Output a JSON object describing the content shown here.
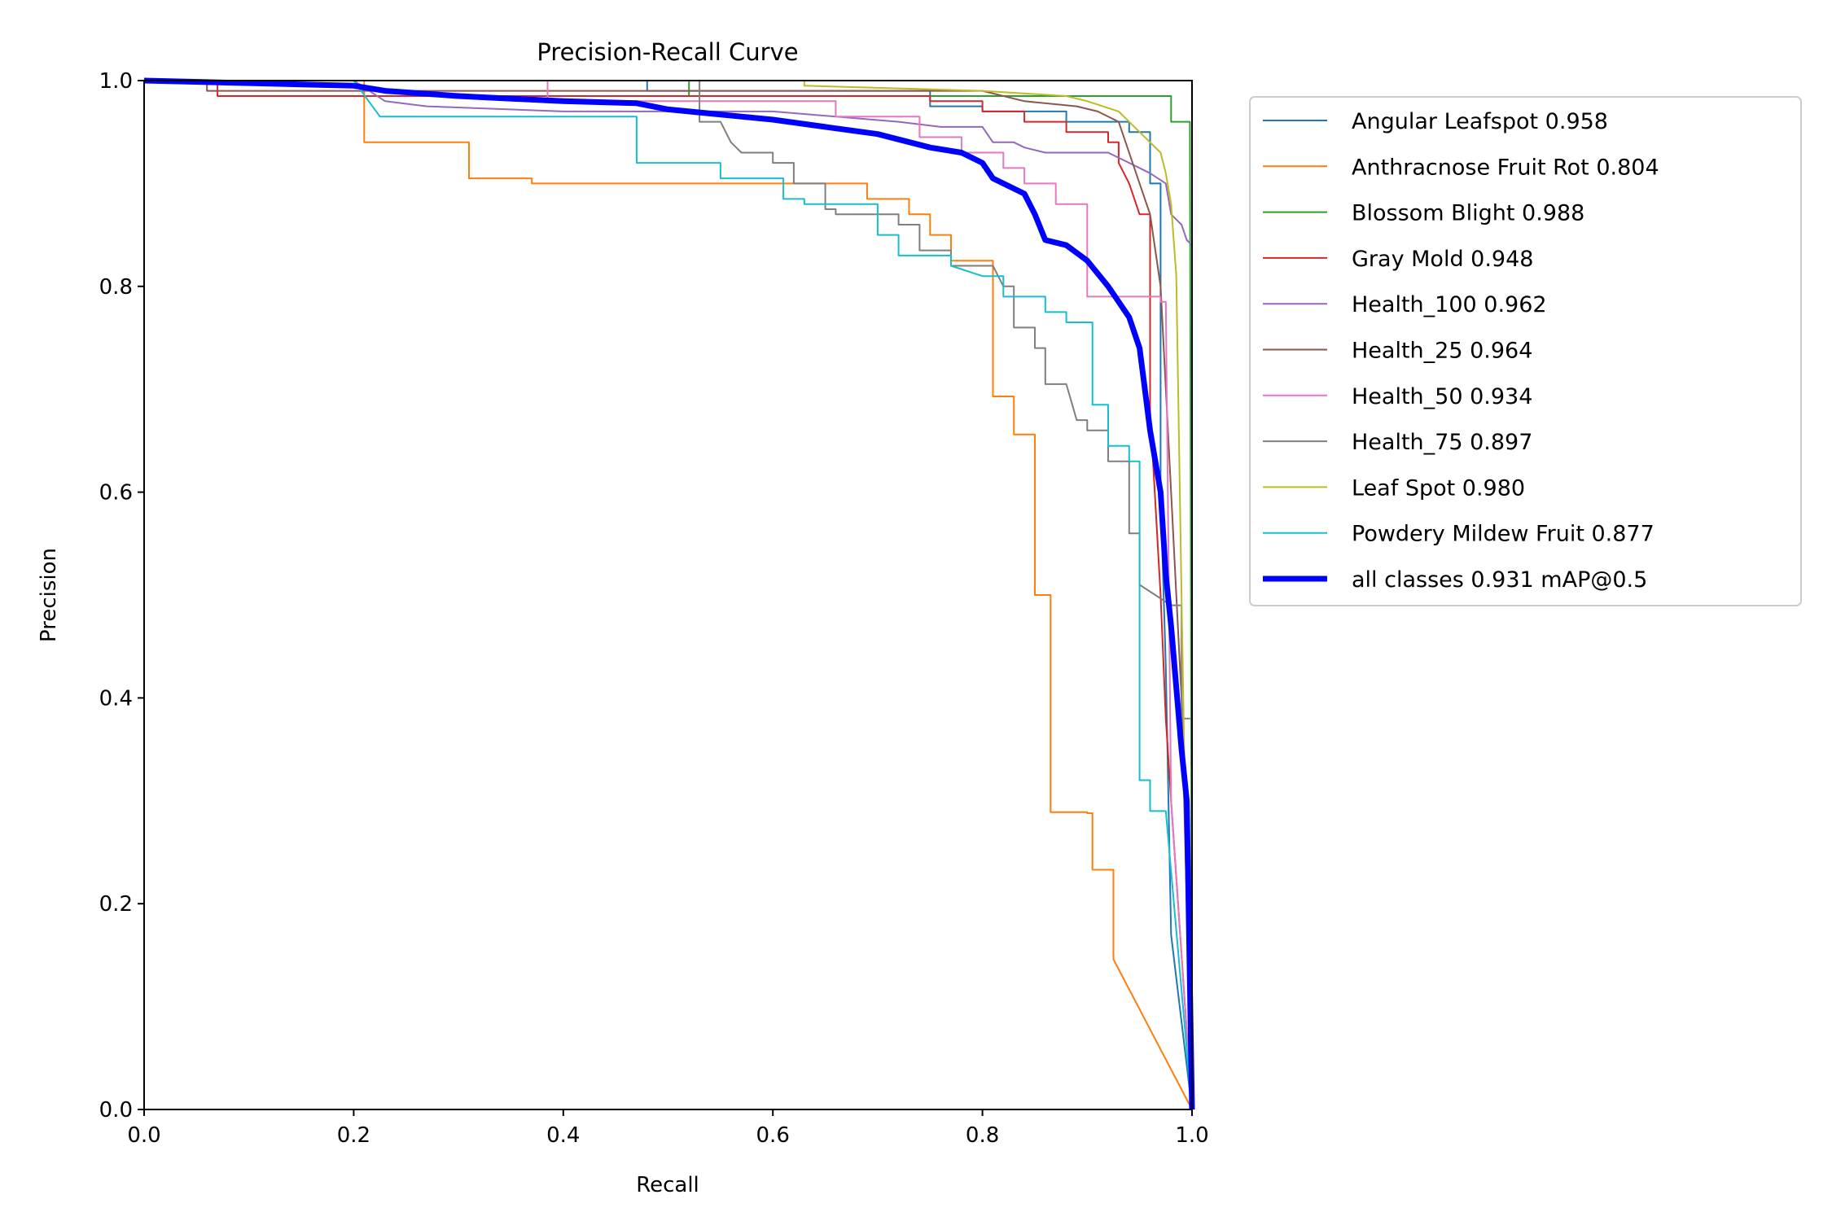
{
  "chart_data": {
    "type": "line",
    "title": "Precision-Recall Curve",
    "xlabel": "Recall",
    "ylabel": "Precision",
    "xlim": [
      0,
      1
    ],
    "ylim": [
      0,
      1
    ],
    "xticks": [
      "0.0",
      "0.2",
      "0.4",
      "0.6",
      "0.8",
      "1.0"
    ],
    "yticks": [
      "0.0",
      "0.2",
      "0.4",
      "0.6",
      "0.8",
      "1.0"
    ],
    "grid": false,
    "legend_position": "outside-top-right",
    "series": [
      {
        "name": "Angular Leafspot 0.958",
        "color": "#1f77b4",
        "points": [
          [
            0,
            1
          ],
          [
            0.48,
            1
          ],
          [
            0.48,
            0.99
          ],
          [
            0.75,
            0.99
          ],
          [
            0.75,
            0.975
          ],
          [
            0.8,
            0.975
          ],
          [
            0.8,
            0.97
          ],
          [
            0.88,
            0.97
          ],
          [
            0.88,
            0.96
          ],
          [
            0.94,
            0.96
          ],
          [
            0.94,
            0.95
          ],
          [
            0.96,
            0.95
          ],
          [
            0.96,
            0.9
          ],
          [
            0.97,
            0.9
          ],
          [
            0.97,
            0.6
          ],
          [
            0.975,
            0.43
          ],
          [
            0.98,
            0.17
          ],
          [
            1.0,
            0.0
          ]
        ]
      },
      {
        "name": "Anthracnose Fruit Rot 0.804",
        "color": "#ff7f0e",
        "points": [
          [
            0,
            1
          ],
          [
            0.21,
            1
          ],
          [
            0.21,
            0.94
          ],
          [
            0.31,
            0.94
          ],
          [
            0.31,
            0.905
          ],
          [
            0.37,
            0.905
          ],
          [
            0.37,
            0.9
          ],
          [
            0.69,
            0.9
          ],
          [
            0.69,
            0.885
          ],
          [
            0.73,
            0.885
          ],
          [
            0.73,
            0.87
          ],
          [
            0.75,
            0.87
          ],
          [
            0.75,
            0.85
          ],
          [
            0.77,
            0.85
          ],
          [
            0.77,
            0.825
          ],
          [
            0.81,
            0.825
          ],
          [
            0.81,
            0.693
          ],
          [
            0.83,
            0.693
          ],
          [
            0.83,
            0.656
          ],
          [
            0.85,
            0.656
          ],
          [
            0.85,
            0.5
          ],
          [
            0.865,
            0.5
          ],
          [
            0.865,
            0.289
          ],
          [
            0.9,
            0.289
          ],
          [
            0.9,
            0.288
          ],
          [
            0.905,
            0.288
          ],
          [
            0.905,
            0.233
          ],
          [
            0.925,
            0.233
          ],
          [
            0.925,
            0.146
          ],
          [
            1.0,
            0.0
          ]
        ]
      },
      {
        "name": "Blossom Blight 0.988",
        "color": "#2ca02c",
        "points": [
          [
            0,
            1
          ],
          [
            0.52,
            1
          ],
          [
            0.52,
            0.985
          ],
          [
            0.98,
            0.985
          ],
          [
            0.98,
            0.96
          ],
          [
            0.998,
            0.96
          ],
          [
            1.0,
            0.0
          ]
        ]
      },
      {
        "name": "Gray Mold 0.948",
        "color": "#d62728",
        "points": [
          [
            0,
            1
          ],
          [
            0.07,
            1
          ],
          [
            0.07,
            0.985
          ],
          [
            0.75,
            0.985
          ],
          [
            0.75,
            0.98
          ],
          [
            0.8,
            0.98
          ],
          [
            0.8,
            0.97
          ],
          [
            0.84,
            0.97
          ],
          [
            0.84,
            0.96
          ],
          [
            0.88,
            0.96
          ],
          [
            0.88,
            0.95
          ],
          [
            0.92,
            0.95
          ],
          [
            0.92,
            0.94
          ],
          [
            0.93,
            0.94
          ],
          [
            0.93,
            0.92
          ],
          [
            0.94,
            0.9
          ],
          [
            0.95,
            0.87
          ],
          [
            0.96,
            0.87
          ],
          [
            0.96,
            0.68
          ],
          [
            0.97,
            0.5
          ],
          [
            0.975,
            0.38
          ],
          [
            0.98,
            0.3
          ],
          [
            1.0,
            0.0
          ]
        ]
      },
      {
        "name": "Health_100 0.962",
        "color": "#9467bd",
        "points": [
          [
            0,
            1
          ],
          [
            0.2,
            1
          ],
          [
            0.23,
            0.98
          ],
          [
            0.27,
            0.975
          ],
          [
            0.4,
            0.97
          ],
          [
            0.6,
            0.97
          ],
          [
            0.72,
            0.96
          ],
          [
            0.76,
            0.955
          ],
          [
            0.8,
            0.955
          ],
          [
            0.81,
            0.94
          ],
          [
            0.83,
            0.94
          ],
          [
            0.84,
            0.935
          ],
          [
            0.86,
            0.93
          ],
          [
            0.92,
            0.93
          ],
          [
            0.94,
            0.92
          ],
          [
            0.96,
            0.91
          ],
          [
            0.975,
            0.9
          ],
          [
            0.98,
            0.87
          ],
          [
            0.99,
            0.86
          ],
          [
            0.995,
            0.845
          ],
          [
            1.0,
            0.84
          ],
          [
            1.0,
            0.0
          ]
        ]
      },
      {
        "name": "Health_25 0.964",
        "color": "#8c564b",
        "points": [
          [
            0,
            1
          ],
          [
            0.06,
            1
          ],
          [
            0.06,
            0.99
          ],
          [
            0.8,
            0.99
          ],
          [
            0.84,
            0.98
          ],
          [
            0.89,
            0.975
          ],
          [
            0.91,
            0.97
          ],
          [
            0.93,
            0.96
          ],
          [
            0.95,
            0.9
          ],
          [
            0.96,
            0.87
          ],
          [
            0.97,
            0.8
          ],
          [
            0.98,
            0.6
          ],
          [
            0.99,
            0.4
          ],
          [
            1.0,
            0.0
          ]
        ]
      },
      {
        "name": "Health_50 0.934",
        "color": "#e377c2",
        "points": [
          [
            0,
            1
          ],
          [
            0.385,
            1
          ],
          [
            0.385,
            0.98
          ],
          [
            0.66,
            0.98
          ],
          [
            0.66,
            0.965
          ],
          [
            0.74,
            0.965
          ],
          [
            0.74,
            0.945
          ],
          [
            0.78,
            0.945
          ],
          [
            0.78,
            0.93
          ],
          [
            0.82,
            0.93
          ],
          [
            0.82,
            0.915
          ],
          [
            0.84,
            0.915
          ],
          [
            0.84,
            0.9
          ],
          [
            0.87,
            0.9
          ],
          [
            0.87,
            0.88
          ],
          [
            0.9,
            0.88
          ],
          [
            0.9,
            0.79
          ],
          [
            0.97,
            0.79
          ],
          [
            0.97,
            0.785
          ],
          [
            0.975,
            0.785
          ],
          [
            0.98,
            0.3
          ],
          [
            1.0,
            0.0
          ]
        ]
      },
      {
        "name": "Health_75 0.897",
        "color": "#7f7f7f",
        "points": [
          [
            0,
            1
          ],
          [
            0.53,
            1
          ],
          [
            0.53,
            0.96
          ],
          [
            0.55,
            0.96
          ],
          [
            0.56,
            0.94
          ],
          [
            0.57,
            0.93
          ],
          [
            0.6,
            0.93
          ],
          [
            0.6,
            0.92
          ],
          [
            0.62,
            0.92
          ],
          [
            0.62,
            0.9
          ],
          [
            0.65,
            0.9
          ],
          [
            0.65,
            0.875
          ],
          [
            0.66,
            0.875
          ],
          [
            0.66,
            0.87
          ],
          [
            0.72,
            0.87
          ],
          [
            0.72,
            0.86
          ],
          [
            0.74,
            0.86
          ],
          [
            0.74,
            0.835
          ],
          [
            0.77,
            0.835
          ],
          [
            0.77,
            0.82
          ],
          [
            0.81,
            0.82
          ],
          [
            0.82,
            0.8
          ],
          [
            0.83,
            0.8
          ],
          [
            0.83,
            0.76
          ],
          [
            0.85,
            0.76
          ],
          [
            0.85,
            0.74
          ],
          [
            0.86,
            0.74
          ],
          [
            0.86,
            0.705
          ],
          [
            0.88,
            0.705
          ],
          [
            0.89,
            0.67
          ],
          [
            0.9,
            0.67
          ],
          [
            0.9,
            0.66
          ],
          [
            0.92,
            0.66
          ],
          [
            0.92,
            0.63
          ],
          [
            0.94,
            0.63
          ],
          [
            0.94,
            0.56
          ],
          [
            0.95,
            0.56
          ],
          [
            0.95,
            0.51
          ],
          [
            0.98,
            0.49
          ],
          [
            0.99,
            0.49
          ],
          [
            0.99,
            0.38
          ],
          [
            1.0,
            0.38
          ],
          [
            1.0,
            0.0
          ]
        ]
      },
      {
        "name": "Leaf Spot 0.980",
        "color": "#bcbd22",
        "points": [
          [
            0,
            1
          ],
          [
            0.63,
            1
          ],
          [
            0.63,
            0.995
          ],
          [
            0.8,
            0.99
          ],
          [
            0.88,
            0.985
          ],
          [
            0.9,
            0.98
          ],
          [
            0.93,
            0.97
          ],
          [
            0.95,
            0.95
          ],
          [
            0.97,
            0.93
          ],
          [
            0.975,
            0.91
          ],
          [
            0.98,
            0.88
          ],
          [
            0.985,
            0.81
          ],
          [
            0.99,
            0.5
          ],
          [
            0.995,
            0.2
          ],
          [
            1.0,
            0.0
          ]
        ]
      },
      {
        "name": "Powdery Mildew Fruit 0.877",
        "color": "#17becf",
        "points": [
          [
            0,
            1
          ],
          [
            0.2,
            1
          ],
          [
            0.225,
            0.965
          ],
          [
            0.47,
            0.965
          ],
          [
            0.47,
            0.92
          ],
          [
            0.55,
            0.92
          ],
          [
            0.55,
            0.905
          ],
          [
            0.61,
            0.905
          ],
          [
            0.61,
            0.885
          ],
          [
            0.63,
            0.885
          ],
          [
            0.63,
            0.88
          ],
          [
            0.7,
            0.88
          ],
          [
            0.7,
            0.85
          ],
          [
            0.72,
            0.85
          ],
          [
            0.72,
            0.83
          ],
          [
            0.77,
            0.83
          ],
          [
            0.77,
            0.82
          ],
          [
            0.8,
            0.81
          ],
          [
            0.82,
            0.81
          ],
          [
            0.82,
            0.79
          ],
          [
            0.86,
            0.79
          ],
          [
            0.86,
            0.775
          ],
          [
            0.88,
            0.775
          ],
          [
            0.88,
            0.765
          ],
          [
            0.905,
            0.765
          ],
          [
            0.905,
            0.685
          ],
          [
            0.92,
            0.685
          ],
          [
            0.92,
            0.645
          ],
          [
            0.94,
            0.645
          ],
          [
            0.94,
            0.63
          ],
          [
            0.95,
            0.63
          ],
          [
            0.95,
            0.32
          ],
          [
            0.96,
            0.32
          ],
          [
            0.96,
            0.29
          ],
          [
            0.975,
            0.29
          ],
          [
            1.0,
            0.0
          ]
        ]
      },
      {
        "name": "all classes 0.931 mAP@0.5",
        "color": "#0000ff",
        "thick": true,
        "points": [
          [
            0,
            1
          ],
          [
            0.2,
            0.995
          ],
          [
            0.23,
            0.99
          ],
          [
            0.3,
            0.985
          ],
          [
            0.4,
            0.98
          ],
          [
            0.47,
            0.978
          ],
          [
            0.5,
            0.972
          ],
          [
            0.6,
            0.962
          ],
          [
            0.65,
            0.955
          ],
          [
            0.7,
            0.948
          ],
          [
            0.75,
            0.935
          ],
          [
            0.78,
            0.93
          ],
          [
            0.8,
            0.92
          ],
          [
            0.81,
            0.905
          ],
          [
            0.84,
            0.89
          ],
          [
            0.85,
            0.87
          ],
          [
            0.86,
            0.845
          ],
          [
            0.88,
            0.84
          ],
          [
            0.9,
            0.825
          ],
          [
            0.92,
            0.8
          ],
          [
            0.94,
            0.77
          ],
          [
            0.95,
            0.74
          ],
          [
            0.955,
            0.7
          ],
          [
            0.96,
            0.66
          ],
          [
            0.97,
            0.6
          ],
          [
            0.975,
            0.52
          ],
          [
            0.98,
            0.47
          ],
          [
            0.99,
            0.35
          ],
          [
            0.995,
            0.3
          ],
          [
            1.0,
            0.0
          ]
        ]
      }
    ]
  }
}
